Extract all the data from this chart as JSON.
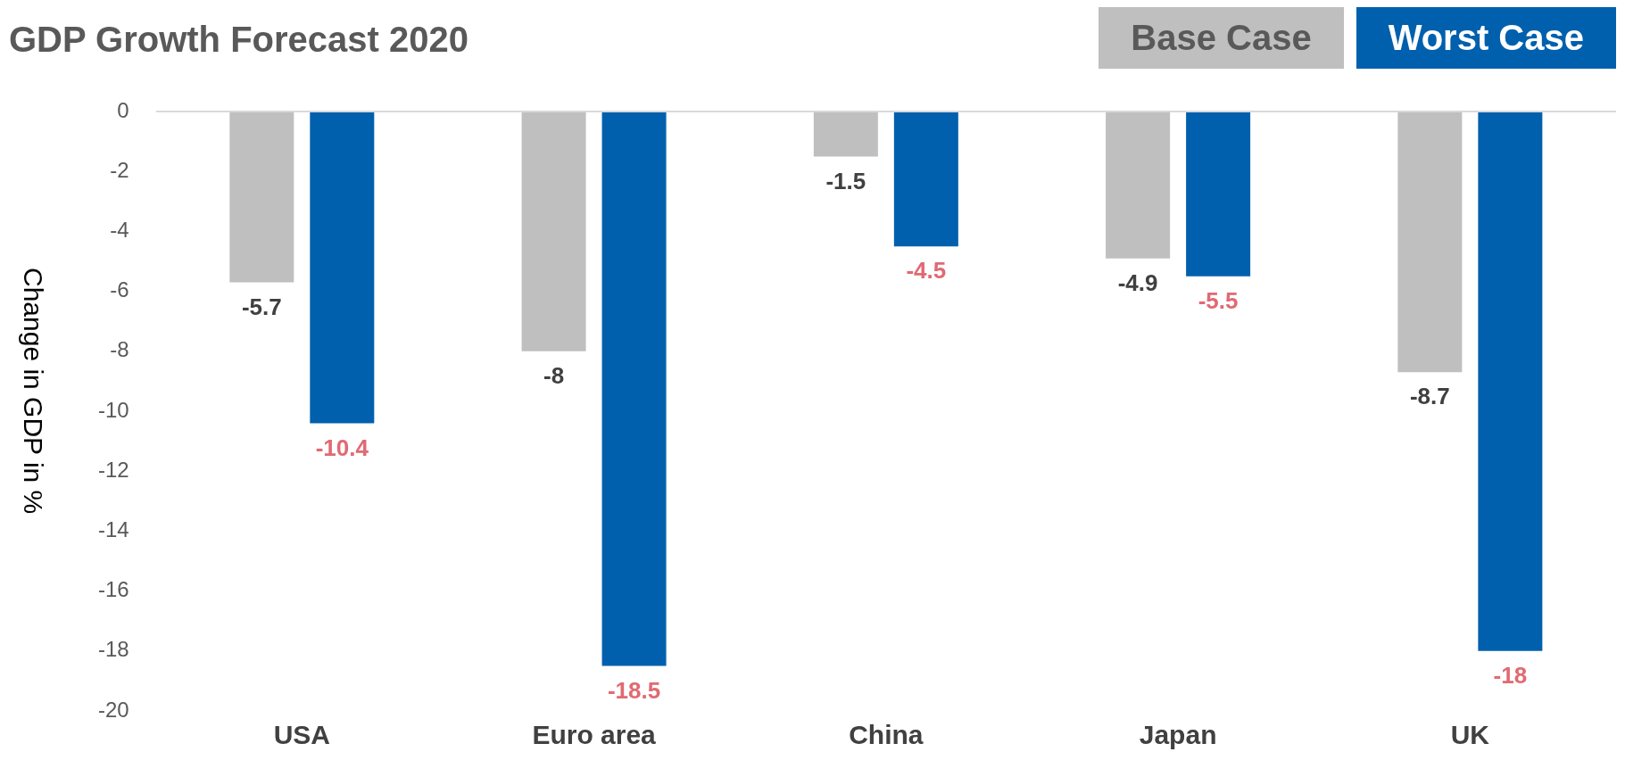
{
  "chart_data": {
    "type": "bar",
    "title": "GDP Growth Forecast 2020",
    "ylabel": "Change in GDP in %",
    "categories": [
      "USA",
      "Euro area",
      "China",
      "Japan",
      "UK"
    ],
    "series": [
      {
        "name": "Base Case",
        "color": "#bfbfbf",
        "values": [
          -5.7,
          -8,
          -1.5,
          -4.9,
          -8.7
        ]
      },
      {
        "name": "Worst Case",
        "color": "#0060ad",
        "values": [
          -10.4,
          -18.5,
          -4.5,
          -5.5,
          -18
        ]
      }
    ],
    "ylim": [
      -20,
      0
    ],
    "yticks": [
      0,
      -2,
      -4,
      -6,
      -8,
      -10,
      -12,
      -14,
      -16,
      -18,
      -20
    ],
    "data_labels": true,
    "legend": "top right"
  }
}
